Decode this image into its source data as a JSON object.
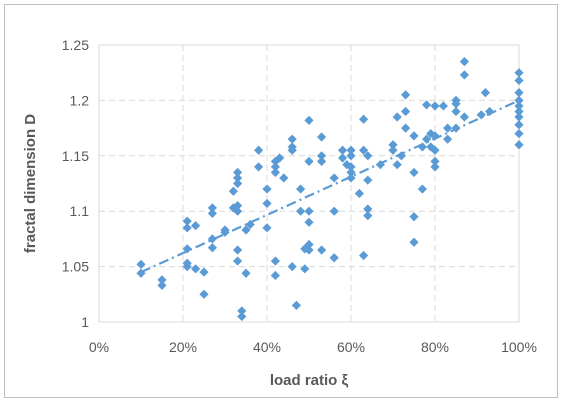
{
  "chart_data": {
    "type": "scatter",
    "title": "",
    "xlabel": "load ratio ξ",
    "ylabel": "fractal dimension  D",
    "xlim": [
      0,
      100
    ],
    "ylim": [
      1,
      1.25
    ],
    "x_tick_labels": [
      "0%",
      "20%",
      "40%",
      "60%",
      "80%",
      "100%"
    ],
    "x_ticks": [
      0,
      20,
      40,
      60,
      80,
      100
    ],
    "y_tick_labels": [
      "1",
      "1.05",
      "1.1",
      "1.15",
      "1.2",
      "1.25"
    ],
    "y_ticks": [
      1,
      1.05,
      1.1,
      1.15,
      1.2,
      1.25
    ],
    "grid": true,
    "legend": "none",
    "colors": {
      "marker": "#5b9bd5",
      "trendline": "#5b9bd5",
      "grid": "#d9d9d9",
      "text": "#595959"
    },
    "series": [
      {
        "marker": "diamond",
        "points": [
          [
            10,
            1.052
          ],
          [
            10,
            1.044
          ],
          [
            15,
            1.038
          ],
          [
            15,
            1.033
          ],
          [
            21,
            1.091
          ],
          [
            21,
            1.085
          ],
          [
            21,
            1.066
          ],
          [
            21,
            1.053
          ],
          [
            21,
            1.05
          ],
          [
            23,
            1.087
          ],
          [
            23,
            1.048
          ],
          [
            25,
            1.045
          ],
          [
            25,
            1.025
          ],
          [
            27,
            1.103
          ],
          [
            27,
            1.098
          ],
          [
            27,
            1.067
          ],
          [
            27,
            1.075
          ],
          [
            30,
            1.083
          ],
          [
            30,
            1.081
          ],
          [
            32,
            1.118
          ],
          [
            32,
            1.103
          ],
          [
            33,
            1.1
          ],
          [
            33,
            1.105
          ],
          [
            33,
            1.135
          ],
          [
            33,
            1.13
          ],
          [
            33,
            1.125
          ],
          [
            33,
            1.065
          ],
          [
            33,
            1.055
          ],
          [
            34,
            1.01
          ],
          [
            34,
            1.005
          ],
          [
            35,
            1.044
          ],
          [
            35,
            1.083
          ],
          [
            36,
            1.088
          ],
          [
            38,
            1.155
          ],
          [
            38,
            1.14
          ],
          [
            40,
            1.12
          ],
          [
            40,
            1.085
          ],
          [
            40,
            1.107
          ],
          [
            42,
            1.145
          ],
          [
            42,
            1.14
          ],
          [
            42,
            1.135
          ],
          [
            42,
            1.055
          ],
          [
            42,
            1.042
          ],
          [
            43,
            1.148
          ],
          [
            44,
            1.13
          ],
          [
            46,
            1.165
          ],
          [
            46,
            1.158
          ],
          [
            46,
            1.155
          ],
          [
            46,
            1.05
          ],
          [
            47,
            1.015
          ],
          [
            48,
            1.1
          ],
          [
            48,
            1.12
          ],
          [
            49,
            1.066
          ],
          [
            49,
            1.048
          ],
          [
            50,
            1.182
          ],
          [
            50,
            1.145
          ],
          [
            50,
            1.07
          ],
          [
            50,
            1.065
          ],
          [
            50,
            1.1
          ],
          [
            50,
            1.09
          ],
          [
            53,
            1.167
          ],
          [
            53,
            1.145
          ],
          [
            53,
            1.15
          ],
          [
            53,
            1.065
          ],
          [
            56,
            1.13
          ],
          [
            56,
            1.1
          ],
          [
            56,
            1.058
          ],
          [
            58,
            1.155
          ],
          [
            58,
            1.148
          ],
          [
            59,
            1.142
          ],
          [
            60,
            1.155
          ],
          [
            60,
            1.15
          ],
          [
            60,
            1.135
          ],
          [
            60,
            1.14
          ],
          [
            60,
            1.13
          ],
          [
            62,
            1.116
          ],
          [
            63,
            1.183
          ],
          [
            63,
            1.155
          ],
          [
            63,
            1.06
          ],
          [
            64,
            1.15
          ],
          [
            64,
            1.128
          ],
          [
            64,
            1.102
          ],
          [
            64,
            1.096
          ],
          [
            67,
            1.142
          ],
          [
            70,
            1.155
          ],
          [
            70,
            1.16
          ],
          [
            71,
            1.185
          ],
          [
            71,
            1.142
          ],
          [
            72,
            1.15
          ],
          [
            73,
            1.205
          ],
          [
            73,
            1.19
          ],
          [
            73,
            1.175
          ],
          [
            75,
            1.168
          ],
          [
            75,
            1.135
          ],
          [
            75,
            1.095
          ],
          [
            75,
            1.072
          ],
          [
            77,
            1.158
          ],
          [
            77,
            1.12
          ],
          [
            78,
            1.196
          ],
          [
            78,
            1.165
          ],
          [
            79,
            1.17
          ],
          [
            79,
            1.158
          ],
          [
            80,
            1.195
          ],
          [
            80,
            1.168
          ],
          [
            80,
            1.155
          ],
          [
            80,
            1.145
          ],
          [
            80,
            1.14
          ],
          [
            82,
            1.195
          ],
          [
            83,
            1.175
          ],
          [
            83,
            1.165
          ],
          [
            85,
            1.197
          ],
          [
            85,
            1.19
          ],
          [
            85,
            1.2
          ],
          [
            85,
            1.175
          ],
          [
            87,
            1.235
          ],
          [
            87,
            1.223
          ],
          [
            87,
            1.185
          ],
          [
            91,
            1.187
          ],
          [
            92,
            1.207
          ],
          [
            93,
            1.19
          ],
          [
            100,
            1.225
          ],
          [
            100,
            1.218
          ],
          [
            100,
            1.207
          ],
          [
            100,
            1.2
          ],
          [
            100,
            1.195
          ],
          [
            100,
            1.19
          ],
          [
            100,
            1.185
          ],
          [
            100,
            1.178
          ],
          [
            100,
            1.17
          ],
          [
            100,
            1.16
          ]
        ],
        "trendline": {
          "type": "linear",
          "style": "dash-dot",
          "x": [
            10,
            100
          ],
          "y": [
            1.045,
            1.2
          ]
        }
      }
    ]
  }
}
